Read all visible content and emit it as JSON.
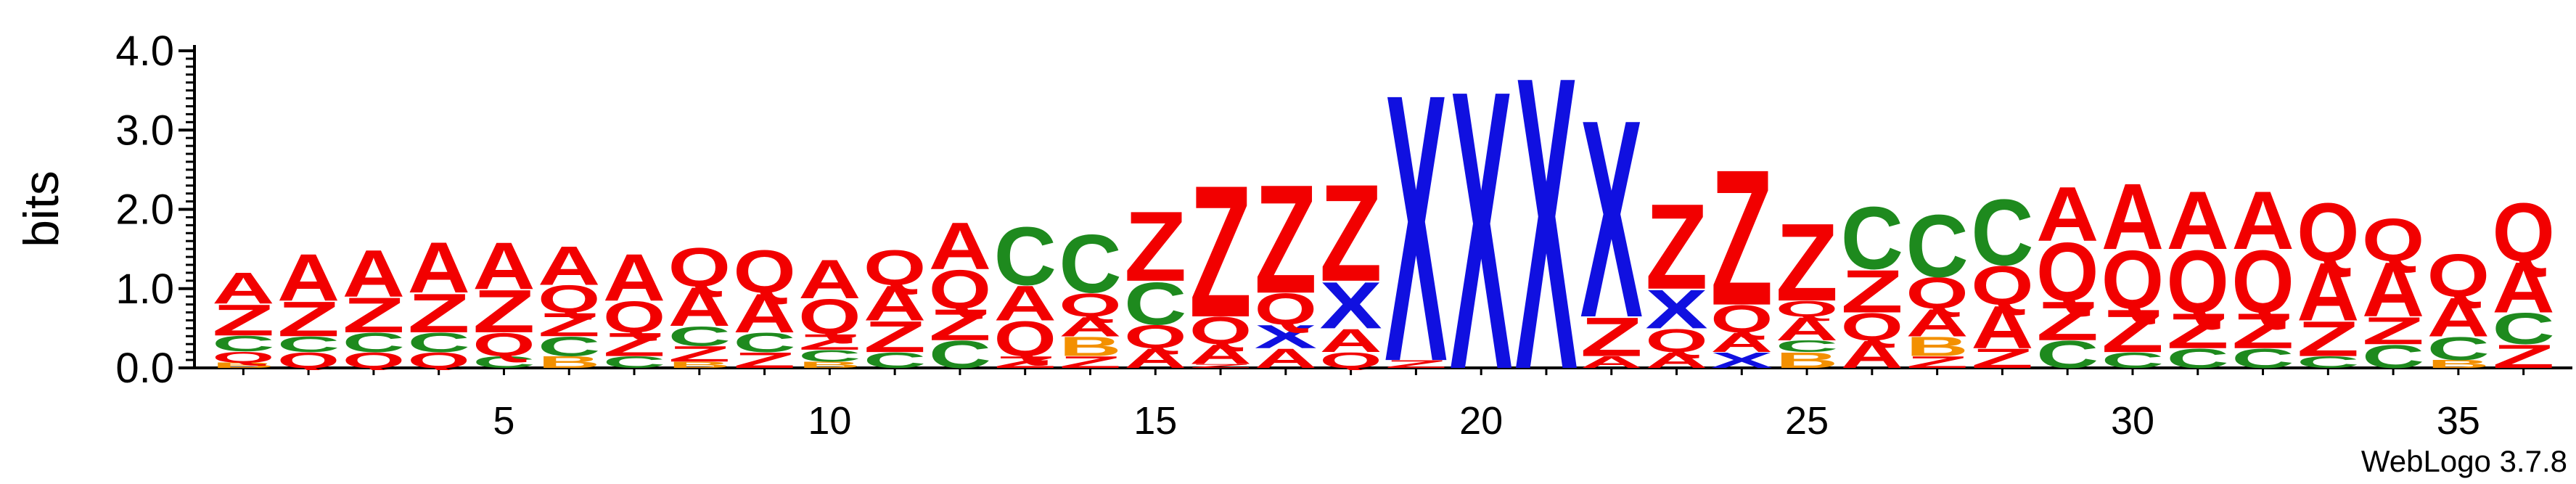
{
  "chart_data": {
    "type": "sequence-logo",
    "ylabel": "bits",
    "ylim": [
      0,
      4.0
    ],
    "y_ticks": [
      "0.0",
      "1.0",
      "2.0",
      "3.0",
      "4.0"
    ],
    "x_ticks": [
      5,
      10,
      15,
      20,
      25,
      30,
      35
    ],
    "credit": "WebLogo 3.7.8",
    "colors": {
      "A": "#f20000",
      "Z": "#f20000",
      "Q": "#f20000",
      "C": "#1e8a1e",
      "X": "#1010e0",
      "B": "#f39000"
    },
    "positions": [
      {
        "pos": 1,
        "stack": [
          [
            "B",
            0.07
          ],
          [
            "Q",
            0.14
          ],
          [
            "C",
            0.2
          ],
          [
            "Z",
            0.4
          ],
          [
            "A",
            0.4
          ]
        ]
      },
      {
        "pos": 2,
        "stack": [
          [
            "Q",
            0.2
          ],
          [
            "C",
            0.2
          ],
          [
            "Z",
            0.45
          ],
          [
            "A",
            0.6
          ]
        ]
      },
      {
        "pos": 3,
        "stack": [
          [
            "Q",
            0.2
          ],
          [
            "C",
            0.25
          ],
          [
            "Z",
            0.45
          ],
          [
            "A",
            0.6
          ]
        ]
      },
      {
        "pos": 4,
        "stack": [
          [
            "Q",
            0.2
          ],
          [
            "C",
            0.25
          ],
          [
            "Z",
            0.5
          ],
          [
            "A",
            0.65
          ]
        ]
      },
      {
        "pos": 5,
        "stack": [
          [
            "C",
            0.15
          ],
          [
            "Q",
            0.3
          ],
          [
            "Z",
            0.55
          ],
          [
            "A",
            0.6
          ]
        ]
      },
      {
        "pos": 6,
        "stack": [
          [
            "B",
            0.15
          ],
          [
            "C",
            0.25
          ],
          [
            "Z",
            0.3
          ],
          [
            "Q",
            0.35
          ],
          [
            "A",
            0.5
          ]
        ]
      },
      {
        "pos": 7,
        "stack": [
          [
            "C",
            0.15
          ],
          [
            "Z",
            0.3
          ],
          [
            "Q",
            0.4
          ],
          [
            "A",
            0.6
          ]
        ]
      },
      {
        "pos": 8,
        "stack": [
          [
            "B",
            0.08
          ],
          [
            "Z",
            0.2
          ],
          [
            "C",
            0.25
          ],
          [
            "A",
            0.5
          ],
          [
            "Q",
            0.5
          ]
        ]
      },
      {
        "pos": 9,
        "stack": [
          [
            "Z",
            0.2
          ],
          [
            "C",
            0.25
          ],
          [
            "A",
            0.5
          ],
          [
            "Q",
            0.55
          ]
        ]
      },
      {
        "pos": 10,
        "stack": [
          [
            "B",
            0.08
          ],
          [
            "C",
            0.15
          ],
          [
            "Z",
            0.2
          ],
          [
            "Q",
            0.45
          ],
          [
            "A",
            0.5
          ]
        ]
      },
      {
        "pos": 11,
        "stack": [
          [
            "C",
            0.2
          ],
          [
            "Z",
            0.4
          ],
          [
            "A",
            0.45
          ],
          [
            "Q",
            0.45
          ]
        ]
      },
      {
        "pos": 12,
        "stack": [
          [
            "C",
            0.35
          ],
          [
            "Z",
            0.4
          ],
          [
            "Q",
            0.5
          ],
          [
            "A",
            0.6
          ]
        ]
      },
      {
        "pos": 13,
        "stack": [
          [
            "Z",
            0.15
          ],
          [
            "Q",
            0.45
          ],
          [
            "A",
            0.45
          ],
          [
            "C",
            0.75
          ]
        ]
      },
      {
        "pos": 14,
        "stack": [
          [
            "Z",
            0.15
          ],
          [
            "B",
            0.25
          ],
          [
            "A",
            0.25
          ],
          [
            "Q",
            0.3
          ],
          [
            "C",
            0.75
          ]
        ]
      },
      {
        "pos": 15,
        "stack": [
          [
            "A",
            0.25
          ],
          [
            "Q",
            0.3
          ],
          [
            "C",
            0.55
          ],
          [
            "Z",
            0.9
          ]
        ]
      },
      {
        "pos": 16,
        "stack": [
          [
            "Z",
            0.05
          ],
          [
            "A",
            0.25
          ],
          [
            "Q",
            0.35
          ],
          [
            "Z",
            1.7
          ]
        ]
      },
      {
        "pos": 17,
        "stack": [
          [
            "A",
            0.25
          ],
          [
            "X",
            0.3
          ],
          [
            "Q",
            0.4
          ],
          [
            "Z",
            1.4
          ]
        ]
      },
      {
        "pos": 18,
        "stack": [
          [
            "Q",
            0.2
          ],
          [
            "A",
            0.3
          ],
          [
            "X",
            0.6
          ],
          [
            "Z",
            1.25
          ]
        ]
      },
      {
        "pos": 19,
        "stack": [
          [
            "Z",
            0.1
          ],
          [
            "X",
            3.45
          ]
        ]
      },
      {
        "pos": 20,
        "stack": [
          [
            "X",
            3.6
          ]
        ]
      },
      {
        "pos": 21,
        "stack": [
          [
            "X",
            3.78
          ]
        ]
      },
      {
        "pos": 22,
        "stack": [
          [
            "A",
            0.15
          ],
          [
            "Z",
            0.5
          ],
          [
            "X",
            2.55
          ]
        ]
      },
      {
        "pos": 23,
        "stack": [
          [
            "A",
            0.2
          ],
          [
            "Q",
            0.3
          ],
          [
            "X",
            0.5
          ],
          [
            "Z",
            1.1
          ]
        ]
      },
      {
        "pos": 24,
        "stack": [
          [
            "X",
            0.2
          ],
          [
            "A",
            0.25
          ],
          [
            "Q",
            0.35
          ],
          [
            "Z",
            1.75
          ]
        ]
      },
      {
        "pos": 25,
        "stack": [
          [
            "B",
            0.2
          ],
          [
            "C",
            0.15
          ],
          [
            "A",
            0.3
          ],
          [
            "Q",
            0.2
          ],
          [
            "Z",
            1.0
          ]
        ]
      },
      {
        "pos": 26,
        "stack": [
          [
            "A",
            0.35
          ],
          [
            "Q",
            0.35
          ],
          [
            "Z",
            0.55
          ],
          [
            "C",
            0.8
          ]
        ]
      },
      {
        "pos": 27,
        "stack": [
          [
            "Z",
            0.15
          ],
          [
            "B",
            0.25
          ],
          [
            "A",
            0.35
          ],
          [
            "Q",
            0.4
          ],
          [
            "C",
            0.8
          ]
        ]
      },
      {
        "pos": 28,
        "stack": [
          [
            "Z",
            0.25
          ],
          [
            "A",
            0.55
          ],
          [
            "Q",
            0.5
          ],
          [
            "C",
            0.85
          ]
        ]
      },
      {
        "pos": 29,
        "stack": [
          [
            "C",
            0.35
          ],
          [
            "Z",
            0.5
          ],
          [
            "Q",
            0.75
          ],
          [
            "A",
            0.7
          ]
        ]
      },
      {
        "pos": 30,
        "stack": [
          [
            "C",
            0.2
          ],
          [
            "Z",
            0.55
          ],
          [
            "Q",
            0.75
          ],
          [
            "A",
            0.85
          ]
        ]
      },
      {
        "pos": 31,
        "stack": [
          [
            "C",
            0.25
          ],
          [
            "Z",
            0.45
          ],
          [
            "Q",
            0.8
          ],
          [
            "A",
            0.75
          ]
        ]
      },
      {
        "pos": 32,
        "stack": [
          [
            "C",
            0.25
          ],
          [
            "Z",
            0.45
          ],
          [
            "Q",
            0.8
          ],
          [
            "A",
            0.75
          ]
        ]
      },
      {
        "pos": 33,
        "stack": [
          [
            "C",
            0.15
          ],
          [
            "Z",
            0.45
          ],
          [
            "A",
            0.75
          ],
          [
            "Q",
            0.75
          ]
        ]
      },
      {
        "pos": 34,
        "stack": [
          [
            "C",
            0.3
          ],
          [
            "Z",
            0.35
          ],
          [
            "A",
            0.7
          ],
          [
            "Q",
            0.55
          ]
        ]
      },
      {
        "pos": 35,
        "stack": [
          [
            "B",
            0.1
          ],
          [
            "C",
            0.3
          ],
          [
            "A",
            0.5
          ],
          [
            "Q",
            0.55
          ]
        ]
      },
      {
        "pos": 36,
        "stack": [
          [
            "Z",
            0.3
          ],
          [
            "C",
            0.4
          ],
          [
            "A",
            0.65
          ],
          [
            "Q",
            0.75
          ]
        ]
      }
    ]
  }
}
